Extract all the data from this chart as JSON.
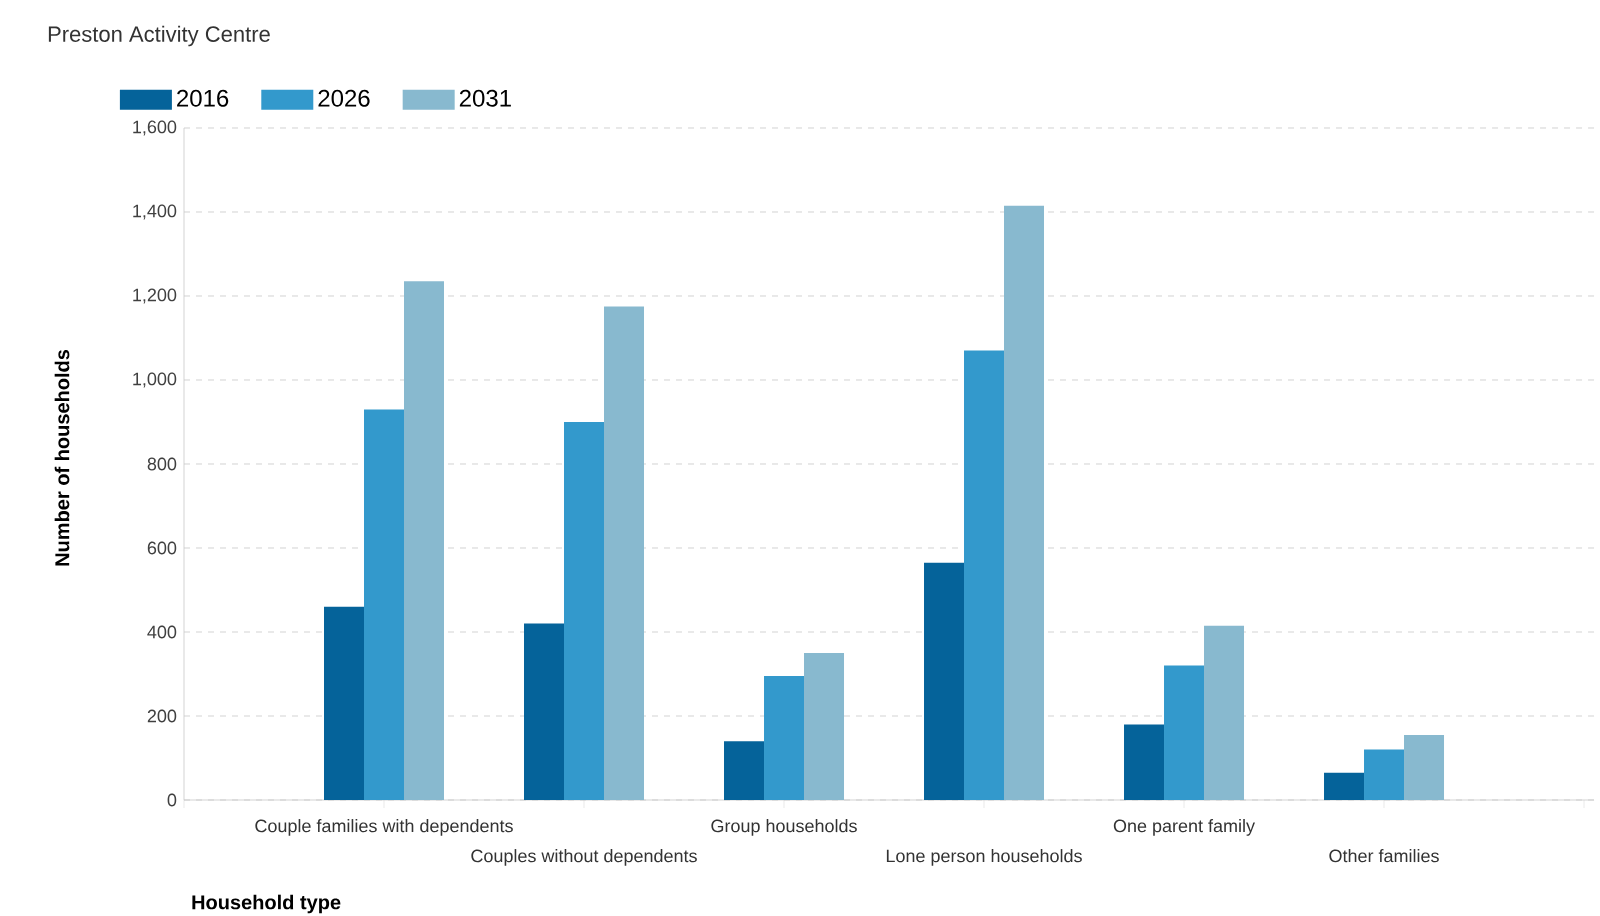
{
  "chart_data": {
    "type": "bar",
    "title": "Preston Activity Centre",
    "xlabel": "Household type",
    "ylabel": "Number of households",
    "categories": [
      "Couple families with dependents",
      "Couples without dependents",
      "Group households",
      "Lone person households",
      "One parent family",
      "Other families"
    ],
    "series": [
      {
        "name": "2016",
        "color": "#05639a",
        "values": [
          460,
          420,
          140,
          565,
          180,
          65
        ]
      },
      {
        "name": "2026",
        "color": "#3399cc",
        "values": [
          930,
          900,
          295,
          1070,
          320,
          120
        ]
      },
      {
        "name": "2031",
        "color": "#88b9cf",
        "values": [
          1235,
          1175,
          350,
          1415,
          415,
          155
        ]
      }
    ],
    "ylim": [
      0,
      1600
    ],
    "yticks": [
      0,
      200,
      400,
      600,
      800,
      {
        "value": 1000,
        "label": "1,000"
      },
      {
        "value": 1200,
        "label": "1,200"
      },
      {
        "value": 1400,
        "label": "1,400"
      },
      {
        "value": 1600,
        "label": "1,600"
      }
    ],
    "grid": "y",
    "legend": "top left"
  }
}
